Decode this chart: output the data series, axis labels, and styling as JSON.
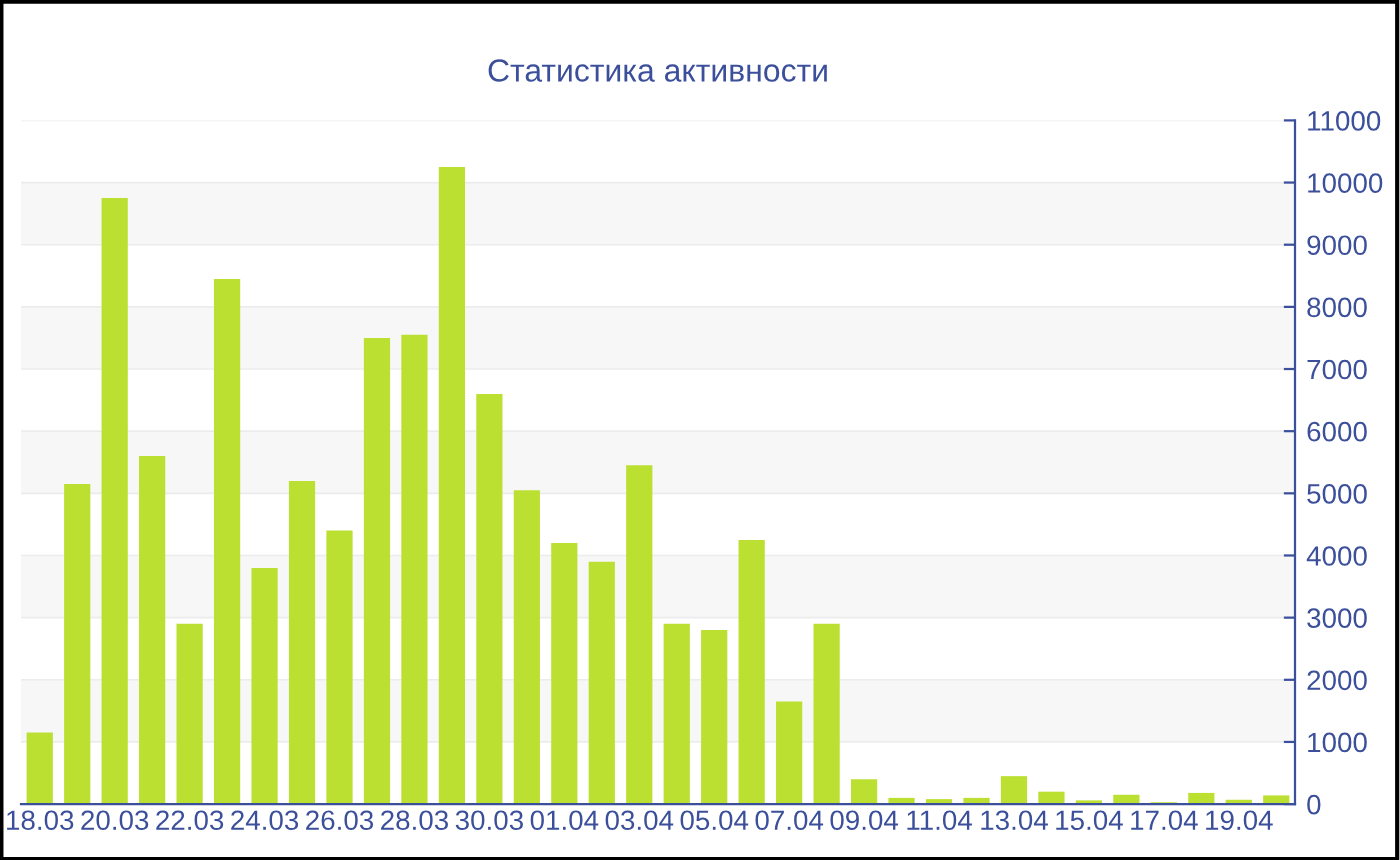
{
  "chart_data": {
    "type": "bar",
    "title": "Статистика активности",
    "categories": [
      "18.03",
      null,
      "20.03",
      null,
      "22.03",
      null,
      "24.03",
      null,
      "26.03",
      null,
      "28.03",
      null,
      "30.03",
      null,
      "01.04",
      null,
      "03.04",
      null,
      "05.04",
      null,
      "07.04",
      null,
      "09.04",
      null,
      "11.04",
      null,
      "13.04",
      null,
      "15.04",
      null,
      "17.04",
      null,
      "19.04",
      null
    ],
    "values": [
      1150,
      5150,
      9750,
      5600,
      2900,
      8450,
      3800,
      5200,
      4400,
      7500,
      7550,
      10250,
      6600,
      5050,
      4200,
      3900,
      5450,
      2900,
      2800,
      4250,
      1650,
      2900,
      400,
      100,
      80,
      100,
      450,
      200,
      60,
      150,
      30,
      180,
      70,
      140
    ],
    "color": "#bce032",
    "ylim": [
      0,
      11000
    ],
    "yticks": [
      0,
      1000,
      2000,
      3000,
      4000,
      5000,
      6000,
      7000,
      8000,
      9000,
      10000,
      11000
    ],
    "grid": "y",
    "legend": false
  }
}
